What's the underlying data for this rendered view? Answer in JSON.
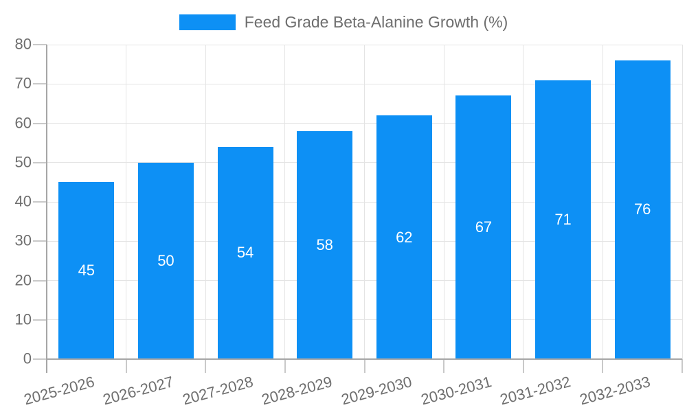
{
  "colors": {
    "bar": "#0d90f5",
    "grid": "#e4e4e4",
    "axis": "#a6a6a6",
    "tick_mark": "#c9c9c9",
    "text": "#6e6e6e",
    "bar_label": "#ffffff",
    "background": "#ffffff"
  },
  "chart_data": {
    "type": "bar",
    "title": "",
    "legend_position": "top",
    "grid": "on",
    "categories": [
      "2025-2026",
      "2026-2027",
      "2027-2028",
      "2028-2029",
      "2029-2030",
      "2030-2031",
      "2031-2032",
      "2032-2033"
    ],
    "series": [
      {
        "name": "Feed Grade Beta-Alanine Growth (%)",
        "values": [
          45,
          50,
          54,
          58,
          62,
          67,
          71,
          76
        ]
      }
    ],
    "bar_value_labels_shown": true,
    "ylim": [
      0,
      80
    ],
    "yticks": [
      0,
      10,
      20,
      30,
      40,
      50,
      60,
      70,
      80
    ],
    "x_label_rotation_deg": -15,
    "xlabel": "",
    "ylabel": ""
  }
}
